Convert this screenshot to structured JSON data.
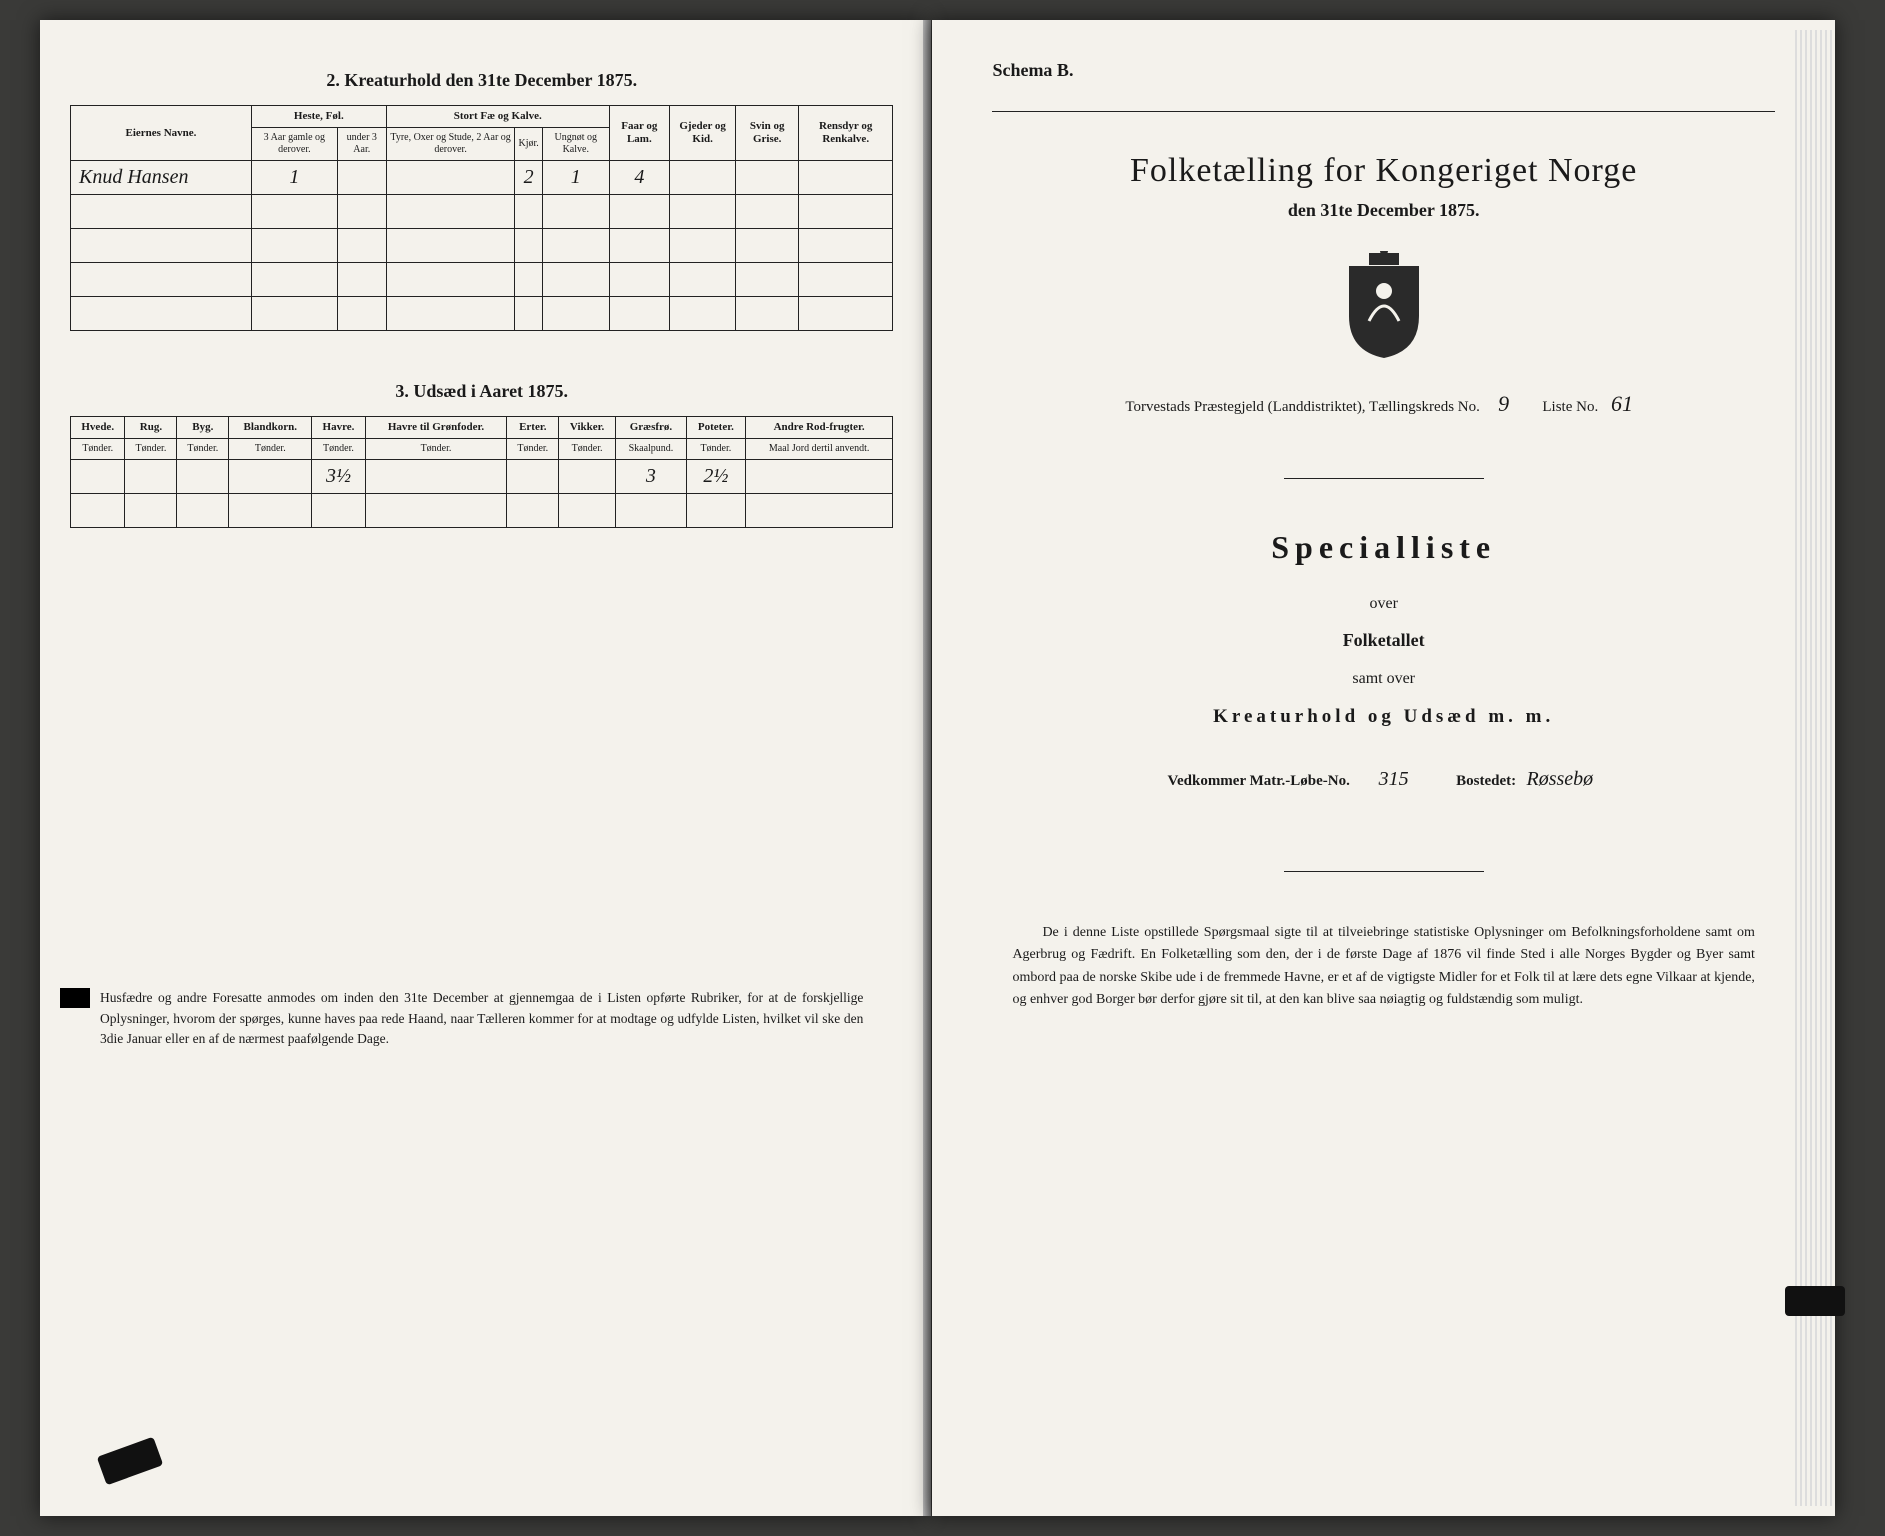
{
  "left": {
    "section2_title": "2.  Kreaturhold den 31te December 1875.",
    "table2": {
      "col_eier": "Eiernes Navne.",
      "grp_heste": "Heste, Føl.",
      "col_heste_a": "3 Aar gamle og derover.",
      "col_heste_b": "under 3 Aar.",
      "grp_stort": "Stort Fæ og Kalve.",
      "col_stort_a": "Tyre, Oxer og Stude, 2 Aar og derover.",
      "col_stort_b": "Kjør.",
      "col_stort_c": "Ungnøt og Kalve.",
      "col_faar": "Faar og Lam.",
      "col_gjed": "Gjeder og Kid.",
      "col_svin": "Svin og Grise.",
      "col_ren": "Rensdyr og Renkalve.",
      "row1": {
        "name": "Knud Hansen",
        "heste_a": "1",
        "stort_b": "2",
        "stort_c": "1",
        "faar": "4"
      }
    },
    "section3_title": "3.  Udsæd i Aaret 1875.",
    "table3": {
      "cols": [
        "Hvede.",
        "Rug.",
        "Byg.",
        "Blandkorn.",
        "Havre.",
        "Havre til Grønfoder.",
        "Erter.",
        "Vikker.",
        "Græsfrø.",
        "Poteter.",
        "Andre Rod-frugter."
      ],
      "subs": [
        "Tønder.",
        "Tønder.",
        "Tønder.",
        "Tønder.",
        "Tønder.",
        "Tønder.",
        "Tønder.",
        "Tønder.",
        "Skaalpund.",
        "Tønder.",
        "Maal Jord dertil anvendt."
      ],
      "row": {
        "havre": "3½",
        "graes": "3",
        "poteter": "2½"
      }
    },
    "footnote": "Husfædre og andre Foresatte anmodes om inden den 31te December at gjennemgaa de i Listen opførte Rubriker, for at de forskjellige Oplysninger, hvorom der spørges, kunne haves paa rede Haand, naar Tælleren kommer for at modtage og udfylde Listen, hvilket vil ske den 3die Januar eller en af de nærmest paafølgende Dage."
  },
  "right": {
    "schema": "Schema B.",
    "main_title": "Folketælling for Kongeriget Norge",
    "sub_title": "den 31te December 1875.",
    "district_prefix": "Torvestads Præstegjeld (Landdistriktet), Tællingskreds No.",
    "kreds_no": "9",
    "liste_label": "Liste No.",
    "liste_no": "61",
    "special": "Specialliste",
    "over": "over",
    "folketallet": "Folketallet",
    "samt": "samt over",
    "kreatur": "Kreaturhold og Udsæd m. m.",
    "matr_label": "Vedkommer Matr.-Løbe-No.",
    "matr_no": "315",
    "bosted_label": "Bostedet:",
    "bosted": "Røssebø",
    "footnote": "De i denne Liste opstillede Spørgsmaal sigte til at tilveiebringe statistiske Oplysninger om Befolkningsforholdene samt om Agerbrug og Fædrift. En Folketælling som den, der i de første Dage af 1876 vil finde Sted i alle Norges Bygder og Byer samt ombord paa de norske Skibe ude i de fremmede Havne, er et af de vigtigste Midler for et Folk til at lære dets egne Vilkaar at kjende, og enhver god Borger bør derfor gjøre sit til, at den kan blive saa nøiagtig og fuldstændig som muligt."
  }
}
